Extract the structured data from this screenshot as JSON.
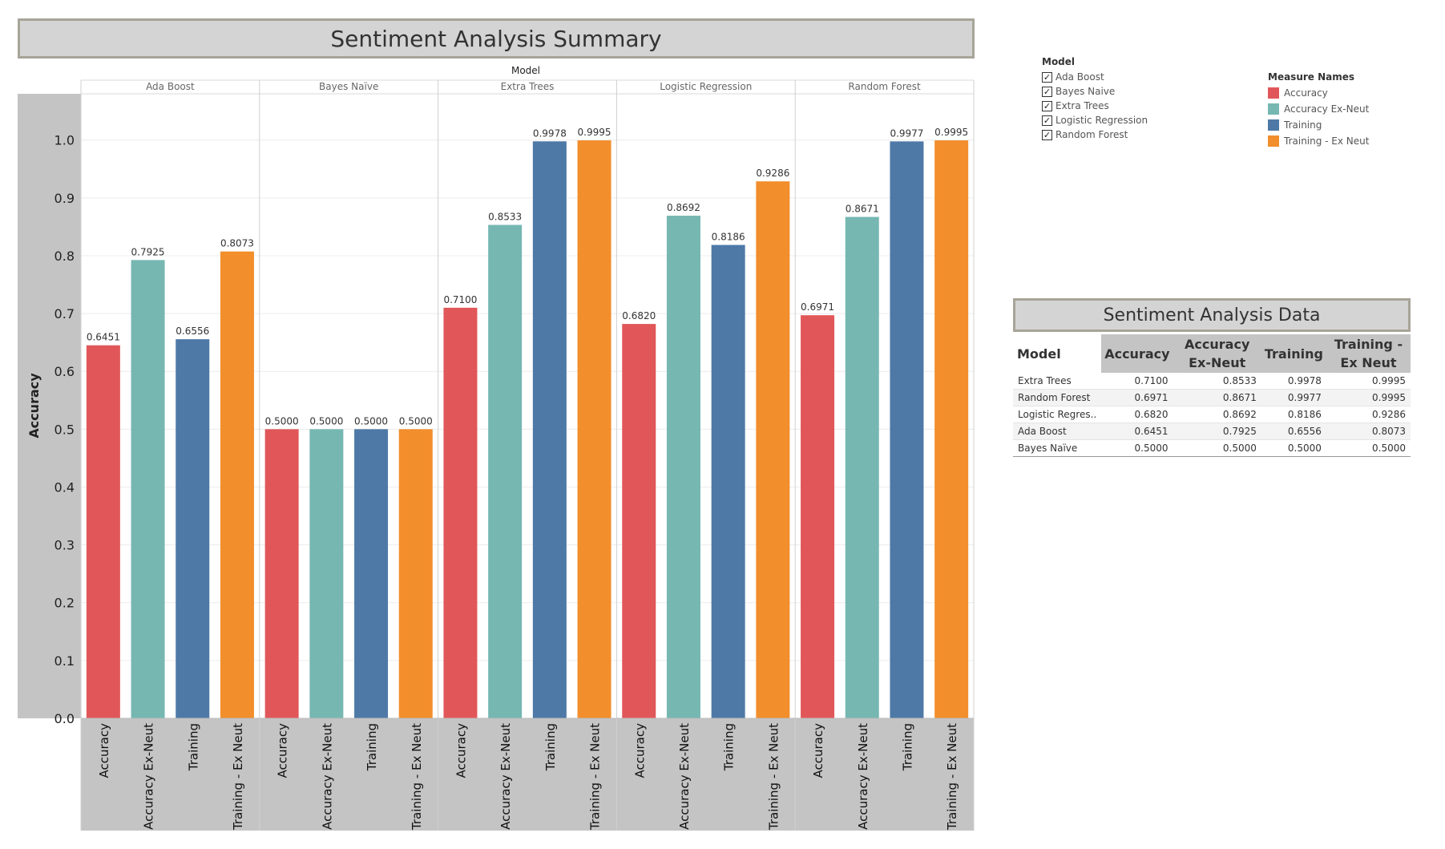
{
  "chart_data": {
    "type": "bar",
    "title": "Sentiment Analysis Summary",
    "column_header": "Model",
    "ylabel": "Accuracy",
    "ylim": [
      0,
      1.08
    ],
    "yticks": [
      "0.0",
      "0.1",
      "0.2",
      "0.3",
      "0.4",
      "0.5",
      "0.6",
      "0.7",
      "0.8",
      "0.9",
      "1.0"
    ],
    "grid": true,
    "panels": [
      {
        "model": "Ada Boost",
        "values": [
          0.6451,
          0.7925,
          0.6556,
          0.8073
        ],
        "labels": [
          "0.6451",
          "0.7925",
          "0.6556",
          "0.8073"
        ]
      },
      {
        "model": "Bayes Naïve",
        "values": [
          0.5,
          0.5,
          0.5,
          0.5
        ],
        "labels": [
          "0.5000",
          "0.5000",
          "0.5000",
          "0.5000"
        ]
      },
      {
        "model": "Extra Trees",
        "values": [
          0.71,
          0.8533,
          0.9978,
          0.9995
        ],
        "labels": [
          "0.7100",
          "0.8533",
          "0.9978",
          "0.9995"
        ]
      },
      {
        "model": "Logistic Regression",
        "values": [
          0.682,
          0.8692,
          0.8186,
          0.9286
        ],
        "labels": [
          "0.6820",
          "0.8692",
          "0.8186",
          "0.9286"
        ]
      },
      {
        "model": "Random Forest",
        "values": [
          0.6971,
          0.8671,
          0.9977,
          0.9995
        ],
        "labels": [
          "0.6971",
          "0.8671",
          "0.9977",
          "0.9995"
        ]
      }
    ],
    "measures": [
      "Accuracy",
      "Accuracy Ex-Neut",
      "Training",
      "Training - Ex Neut"
    ],
    "colors": [
      "#e15759",
      "#76b7b2",
      "#4e79a7",
      "#f28e2b"
    ]
  },
  "model_legend": {
    "title": "Model",
    "items": [
      "Ada Boost",
      "Bayes Naive",
      "Extra Trees",
      "Logistic Regression",
      "Random Forest"
    ]
  },
  "measure_legend": {
    "title": "Measure Names",
    "items": [
      {
        "label": "Accuracy",
        "color": "#e15759"
      },
      {
        "label": "Accuracy Ex-Neut",
        "color": "#76b7b2"
      },
      {
        "label": "Training",
        "color": "#4e79a7"
      },
      {
        "label": "Training - Ex Neut",
        "color": "#f28e2b"
      }
    ]
  },
  "data_table": {
    "title": "Sentiment Analysis Data",
    "headers": [
      "Model",
      "Accuracy",
      "Accuracy Ex-Neut",
      "Training",
      "Training - Ex Neut"
    ],
    "rows": [
      [
        "Extra Trees",
        "0.7100",
        "0.8533",
        "0.9978",
        "0.9995"
      ],
      [
        "Random Forest",
        "0.6971",
        "0.8671",
        "0.9977",
        "0.9995"
      ],
      [
        "Logistic Regres..",
        "0.6820",
        "0.8692",
        "0.8186",
        "0.9286"
      ],
      [
        "Ada Boost",
        "0.6451",
        "0.7925",
        "0.6556",
        "0.8073"
      ],
      [
        "Bayes Naïve",
        "0.5000",
        "0.5000",
        "0.5000",
        "0.5000"
      ]
    ]
  }
}
